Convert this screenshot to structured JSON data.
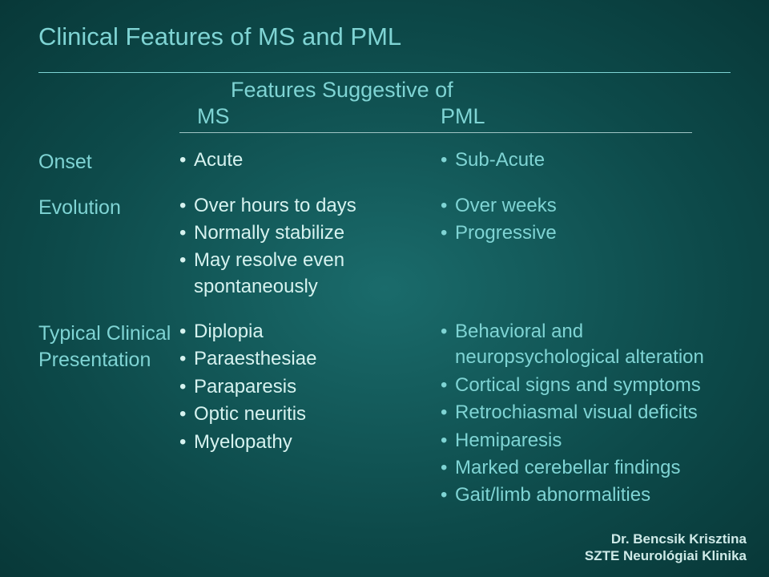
{
  "title": "Clinical Features of MS and PML",
  "header": {
    "suggestive": "Features Suggestive of",
    "ms": "MS",
    "pml": "PML"
  },
  "rows": {
    "onset": {
      "label": "Onset",
      "ms": [
        "Acute"
      ],
      "pml": [
        "Sub-Acute"
      ]
    },
    "evolution": {
      "label": "Evolution",
      "ms": [
        "Over hours to days",
        "Normally stabilize",
        "May resolve even spontaneously"
      ],
      "pml": [
        "Over weeks",
        "Progressive"
      ]
    },
    "presentation": {
      "label": "Typical Clinical Presentation",
      "ms": [
        "Diplopia",
        "Paraesthesiae",
        "Paraparesis",
        "Optic neuritis",
        "Myelopathy"
      ],
      "pml": [
        "Behavioral and neuropsychological alteration",
        "Cortical signs and symptoms",
        "Retrochiasmal visual deficits",
        "Hemiparesis",
        "Marked cerebellar findings",
        "Gait/limb abnormalities"
      ]
    }
  },
  "footer": {
    "line1": "Dr. Bencsik Krisztina",
    "line2": "SZTE Neurológiai Klinika"
  },
  "colors": {
    "accent": "#7fd4d4",
    "ms_text": "#d6f2ef",
    "pml_text": "#7fd4d4",
    "footer_text": "#cfeae8"
  }
}
